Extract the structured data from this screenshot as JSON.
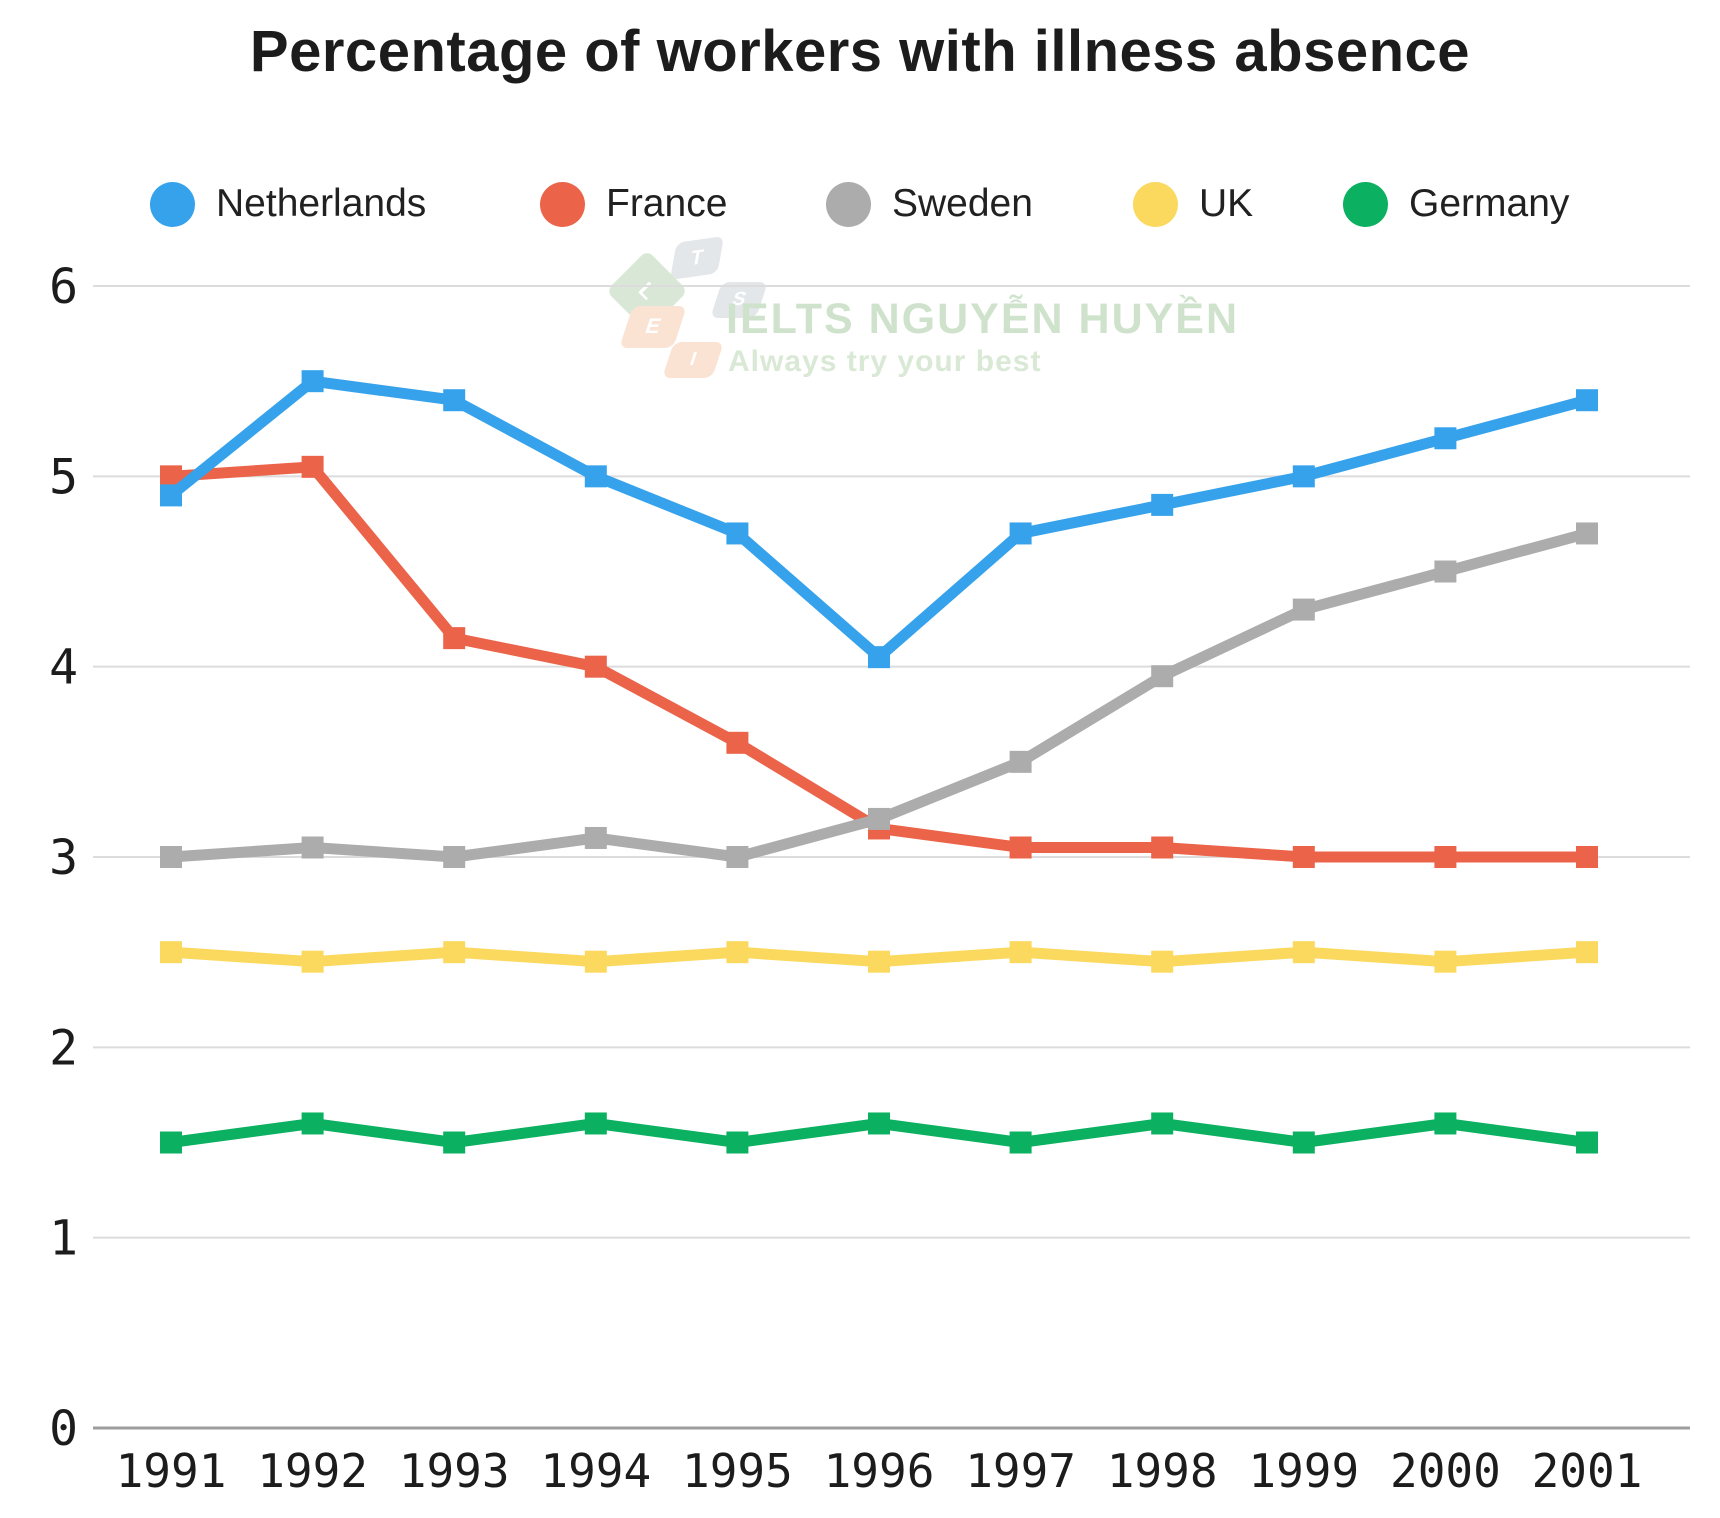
{
  "title": "Percentage of workers with illness absence",
  "watermark": {
    "line1": "IELTS NGUYỄN HUYỀN",
    "line2": "Always try your best",
    "logo_tiles": [
      {
        "letter": "T",
        "color": "#e4e7ea"
      },
      {
        "letter": "L",
        "color": "#d9e8d6"
      },
      {
        "letter": "S",
        "color": "#e4e7ea"
      },
      {
        "letter": "E",
        "color": "#fbe3d3"
      },
      {
        "letter": "I",
        "color": "#fbe3d3"
      }
    ]
  },
  "legend": {
    "items": [
      "Netherlands",
      "France",
      "Sweden",
      "UK",
      "Germany"
    ]
  },
  "chart_data": {
    "type": "line",
    "title": "Percentage of workers with illness absence",
    "x": [
      1991,
      1992,
      1993,
      1994,
      1995,
      1996,
      1997,
      1998,
      1999,
      2000,
      2001
    ],
    "series": [
      {
        "name": "Netherlands",
        "color": "#36A2EC",
        "values": [
          4.9,
          5.5,
          5.4,
          5.0,
          4.7,
          4.05,
          4.7,
          4.85,
          5.0,
          5.2,
          5.4
        ]
      },
      {
        "name": "France",
        "color": "#EB6349",
        "values": [
          5.0,
          5.05,
          4.15,
          4.0,
          3.6,
          3.15,
          3.05,
          3.05,
          3.0,
          3.0,
          3.0
        ]
      },
      {
        "name": "Sweden",
        "color": "#ACACAC",
        "values": [
          3.0,
          3.05,
          3.0,
          3.1,
          3.0,
          3.2,
          3.5,
          3.95,
          4.3,
          4.5,
          4.7
        ]
      },
      {
        "name": "UK",
        "color": "#FAD95E",
        "values": [
          2.5,
          2.45,
          2.5,
          2.45,
          2.5,
          2.45,
          2.5,
          2.45,
          2.5,
          2.45,
          2.5
        ]
      },
      {
        "name": "Germany",
        "color": "#0CB061",
        "values": [
          1.5,
          1.6,
          1.5,
          1.6,
          1.5,
          1.6,
          1.5,
          1.6,
          1.5,
          1.6,
          1.5
        ]
      }
    ],
    "xlabel": "",
    "ylabel": "",
    "ylim": [
      0,
      6
    ],
    "yticks": [
      0,
      1,
      2,
      3,
      4,
      5,
      6
    ],
    "grid": true,
    "legend_position": "top"
  }
}
